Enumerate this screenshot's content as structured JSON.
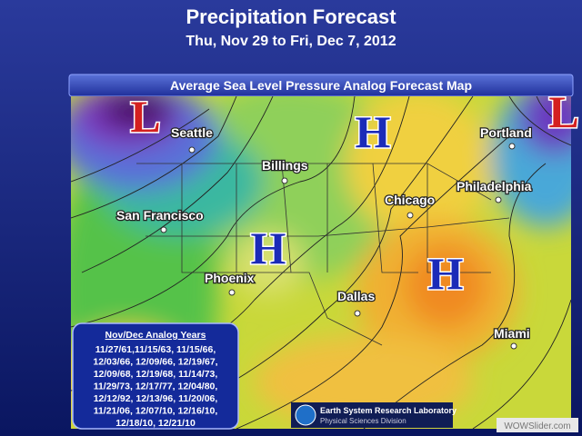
{
  "header": {
    "title": "Precipitation Forecast",
    "subtitle": "Thu, Nov 29 to Fri, Dec 7, 2012"
  },
  "map": {
    "title": "Average Sea Level Pressure Analog Forecast Map",
    "pressure_centers": [
      "L",
      "L",
      "H",
      "H",
      "H"
    ],
    "cities": [
      "Seattle",
      "Billings",
      "San Francisco",
      "Phoenix",
      "Dallas",
      "Chicago",
      "Philadelphia",
      "Portland",
      "Miami"
    ]
  },
  "analog_box": {
    "title": "Nov/Dec Analog Years",
    "lines": [
      "11/27/61,11/15/63, 11/15/66,",
      "12/03/66, 12/09/66, 12/19/67,",
      "12/09/68, 12/19/68, 11/14/73,",
      "11/29/73, 12/17/77, 12/04/80,",
      "12/12/92, 12/13/96, 11/20/06,",
      "11/21/06, 12/07/10, 12/16/10,",
      "12/18/10, 12/21/10"
    ]
  },
  "logo": {
    "name": "Earth System Research Laboratory",
    "division": "Physical Sciences Division"
  },
  "watermark": "WOWSlider.com"
}
